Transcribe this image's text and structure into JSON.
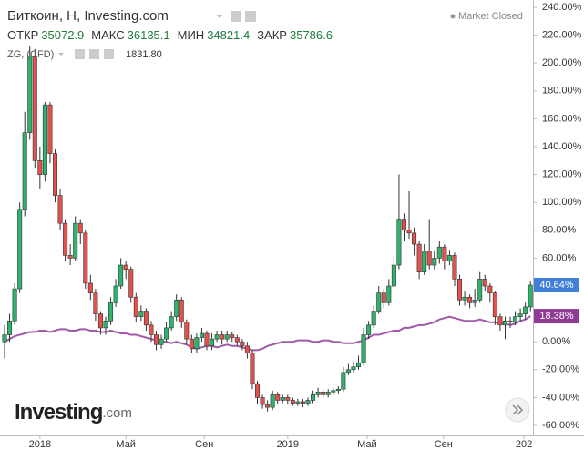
{
  "chart_data": {
    "type": "candlestick",
    "title": "Биткоин, Н, Investing.com",
    "status": "Market Closed",
    "ohlc": [
      {
        "label": "ОТКР",
        "value": 35072.9
      },
      {
        "label": "МАКС",
        "value": 36135.1
      },
      {
        "label": "МИН",
        "value": 34821.4
      },
      {
        "label": "ЗАКР",
        "value": 35786.6
      }
    ],
    "x": [
      0,
      1,
      2,
      3,
      4,
      5,
      6,
      7,
      8,
      9,
      10,
      11,
      12,
      13,
      14,
      15,
      16,
      17,
      18,
      19,
      20,
      21,
      22,
      23,
      24,
      25,
      26,
      27,
      28,
      29,
      30,
      31,
      32,
      33,
      34,
      35,
      36,
      37,
      38,
      39,
      40,
      41,
      42,
      43,
      44,
      45,
      46,
      47,
      48,
      49,
      50,
      51,
      52,
      53,
      54,
      55,
      56,
      57,
      58,
      59,
      60,
      61,
      62,
      63,
      64,
      65,
      66,
      67,
      68,
      69,
      70,
      71,
      72,
      73,
      74,
      75,
      76,
      77,
      78,
      79,
      80,
      81,
      82,
      83,
      84,
      85,
      86,
      87,
      88,
      89,
      90,
      91,
      92,
      93,
      94,
      95,
      96,
      97,
      98,
      99,
      100,
      101,
      102,
      103,
      104
    ],
    "open": [
      0,
      5,
      15,
      38,
      95,
      150,
      205,
      130,
      120,
      170,
      135,
      105,
      85,
      62,
      60,
      85,
      78,
      42,
      35,
      20,
      10,
      15,
      28,
      40,
      55,
      52,
      32,
      18,
      22,
      12,
      5,
      -2,
      2,
      10,
      18,
      30,
      14,
      2,
      -5,
      3,
      6,
      -3,
      2,
      5,
      2,
      5,
      3,
      0,
      -3,
      -8,
      -30,
      -40,
      -45,
      -47,
      -38,
      -42,
      -40,
      -42,
      -44,
      -43,
      -44,
      -42,
      -38,
      -36,
      -38,
      -36,
      -35,
      -34,
      -22,
      -20,
      -18,
      -15,
      5,
      12,
      22,
      35,
      28,
      40,
      55,
      88,
      80,
      78,
      70,
      50,
      65,
      55,
      60,
      68,
      58,
      62,
      45,
      30,
      32,
      28,
      30,
      45,
      40,
      35,
      18,
      12,
      15,
      14,
      18,
      20,
      25
    ],
    "high": [
      12,
      20,
      42,
      100,
      165,
      212,
      210,
      140,
      172,
      172,
      138,
      110,
      88,
      70,
      90,
      88,
      80,
      48,
      38,
      22,
      18,
      32,
      45,
      60,
      58,
      54,
      35,
      26,
      24,
      15,
      8,
      5,
      14,
      22,
      34,
      32,
      16,
      5,
      6,
      10,
      8,
      6,
      8,
      8,
      8,
      7,
      5,
      2,
      0,
      -6,
      -28,
      -38,
      -42,
      -35,
      -36,
      -38,
      -38,
      -40,
      -41,
      -41,
      -40,
      -35,
      -33,
      -34,
      -34,
      -33,
      -32,
      -18,
      -16,
      -14,
      -10,
      10,
      15,
      26,
      40,
      38,
      45,
      62,
      120,
      92,
      108,
      82,
      72,
      70,
      88,
      65,
      72,
      70,
      66,
      64,
      48,
      36,
      34,
      38,
      50,
      48,
      42,
      36,
      20,
      18,
      18,
      22,
      24,
      28,
      44
    ],
    "low": [
      -12,
      0,
      12,
      35,
      90,
      145,
      125,
      110,
      115,
      128,
      100,
      80,
      58,
      55,
      58,
      70,
      38,
      30,
      15,
      5,
      5,
      12,
      25,
      38,
      45,
      28,
      14,
      15,
      8,
      0,
      -6,
      -5,
      0,
      8,
      15,
      10,
      -2,
      -8,
      -8,
      0,
      -6,
      -6,
      0,
      -2,
      0,
      0,
      -3,
      -6,
      -12,
      -34,
      -45,
      -48,
      -50,
      -49,
      -45,
      -44,
      -45,
      -46,
      -46,
      -47,
      -46,
      -44,
      -40,
      -40,
      -40,
      -38,
      -37,
      -36,
      -24,
      -22,
      -20,
      -17,
      2,
      10,
      20,
      24,
      26,
      38,
      52,
      72,
      74,
      62,
      45,
      48,
      52,
      52,
      56,
      52,
      55,
      40,
      26,
      26,
      24,
      25,
      28,
      36,
      28,
      12,
      8,
      2,
      10,
      12,
      14,
      16,
      22
    ],
    "close": [
      5,
      15,
      38,
      95,
      150,
      205,
      130,
      120,
      170,
      135,
      105,
      85,
      62,
      60,
      85,
      78,
      42,
      35,
      20,
      10,
      15,
      28,
      40,
      55,
      52,
      32,
      18,
      22,
      12,
      5,
      -2,
      2,
      10,
      18,
      30,
      14,
      2,
      -5,
      3,
      6,
      -3,
      2,
      5,
      2,
      5,
      3,
      0,
      -3,
      -8,
      -30,
      -40,
      -45,
      -47,
      -38,
      -42,
      -40,
      -42,
      -44,
      -43,
      -44,
      -42,
      -38,
      -36,
      -38,
      -36,
      -35,
      -34,
      -22,
      -20,
      -18,
      -15,
      5,
      12,
      22,
      35,
      28,
      40,
      55,
      88,
      80,
      78,
      70,
      50,
      65,
      55,
      60,
      68,
      58,
      62,
      45,
      30,
      32,
      28,
      30,
      45,
      40,
      35,
      18,
      12,
      15,
      14,
      18,
      20,
      25,
      40.64
    ],
    "last_label": "40.64%",
    "up_color": "#2db36b",
    "down_color": "#e2514c",
    "overlay": {
      "name": "ZG, (CFD)",
      "price": {
        "value": 1831.8,
        "label": "1831.80"
      },
      "color": "#a15aa9",
      "values": [
        0,
        2,
        4,
        5,
        6,
        7,
        7,
        8,
        8,
        7,
        8,
        9,
        9,
        8,
        8,
        9,
        9,
        8,
        8,
        7,
        7,
        8,
        7,
        6,
        6,
        5,
        5,
        4,
        3,
        2,
        1,
        0,
        0,
        -1,
        0,
        -1,
        -2,
        -4,
        -5,
        -4,
        -3,
        -3,
        -4,
        -3,
        -2,
        -3,
        -3,
        -4,
        -5,
        -6,
        -6,
        -5,
        -3,
        -2,
        -1,
        0,
        0,
        0,
        1,
        1,
        1,
        0,
        0,
        1,
        1,
        0,
        0,
        -1,
        -1,
        -1,
        0,
        1,
        3,
        5,
        5,
        6,
        7,
        8,
        8,
        10,
        10,
        11,
        12,
        12,
        13,
        14,
        16,
        17,
        18,
        17,
        16,
        15,
        15,
        15,
        16,
        15,
        14,
        14,
        13,
        13,
        12,
        13,
        15,
        16,
        18.38
      ],
      "last_label": "18.38%"
    },
    "xlim": [
      -0.9,
      104.5
    ],
    "xticks": [
      {
        "value": 7,
        "label": "2018"
      },
      {
        "value": 24,
        "label": "Май"
      },
      {
        "value": 39.5,
        "label": "Сен"
      },
      {
        "value": 56,
        "label": "2019"
      },
      {
        "value": 71.7,
        "label": "Май"
      },
      {
        "value": 86.8,
        "label": "Сен"
      },
      {
        "value": 102.7,
        "label": "202"
      }
    ],
    "ylim": [
      -60,
      240
    ],
    "yticks": [
      {
        "value": 240,
        "label": "240.00%"
      },
      {
        "value": 220,
        "label": "220.00%"
      },
      {
        "value": 200,
        "label": "200.00%"
      },
      {
        "value": 180,
        "label": "180.00%"
      },
      {
        "value": 160,
        "label": "160.00%"
      },
      {
        "value": 140,
        "label": "140.00%"
      },
      {
        "value": 120,
        "label": "120.00%"
      },
      {
        "value": 100,
        "label": "100.00%"
      },
      {
        "value": 80,
        "label": "80.00%"
      },
      {
        "value": 60,
        "label": "60.00%"
      },
      {
        "value": 40,
        "label": "40.00%"
      },
      {
        "value": 20,
        "label": "20.00%"
      },
      {
        "value": 0,
        "label": "0.00%"
      },
      {
        "value": -20,
        "label": "-20.00%"
      },
      {
        "value": -40,
        "label": "-40.00%"
      },
      {
        "value": -60,
        "label": "-60.00%"
      }
    ],
    "watermark": {
      "name": "Investing",
      "suffix": ".com"
    }
  }
}
